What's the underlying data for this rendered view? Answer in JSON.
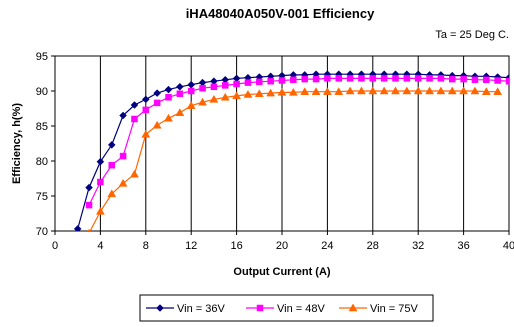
{
  "chart_data": {
    "type": "line",
    "title": "iHA48040A050V-001 Efficiency",
    "annotation": "Ta = 25 Deg C.",
    "xlabel": "Output Current (A)",
    "ylabel": "Efficiency, h(%)",
    "xlim": [
      0,
      40
    ],
    "ylim": [
      70,
      95
    ],
    "xticks": [
      0,
      4,
      8,
      12,
      16,
      20,
      24,
      28,
      32,
      36,
      40
    ],
    "yticks": [
      70,
      75,
      80,
      85,
      90,
      95
    ],
    "grid": "vertical",
    "legend": "bottom",
    "series": [
      {
        "name": "Vin = 36V",
        "color": "#000080",
        "marker": "diamond",
        "x": [
          2,
          3,
          4,
          5,
          6,
          7,
          8,
          9,
          10,
          11,
          12,
          13,
          14,
          15,
          16,
          17,
          18,
          19,
          20,
          21,
          22,
          23,
          24,
          25,
          26,
          27,
          28,
          29,
          30,
          31,
          32,
          33,
          34,
          35,
          36,
          37,
          38,
          39,
          40
        ],
        "values": [
          70.3,
          76.2,
          79.9,
          82.3,
          86.5,
          88.0,
          88.8,
          89.7,
          90.2,
          90.6,
          90.9,
          91.2,
          91.4,
          91.6,
          91.8,
          91.9,
          92.0,
          92.1,
          92.2,
          92.3,
          92.3,
          92.4,
          92.4,
          92.4,
          92.4,
          92.4,
          92.4,
          92.4,
          92.4,
          92.4,
          92.4,
          92.3,
          92.3,
          92.2,
          92.2,
          92.1,
          92.1,
          92.0,
          91.9
        ]
      },
      {
        "name": "Vin = 48V",
        "color": "#ff00ff",
        "marker": "square",
        "x": [
          3,
          4,
          5,
          6,
          7,
          8,
          9,
          10,
          11,
          12,
          13,
          14,
          15,
          16,
          17,
          18,
          19,
          20,
          21,
          22,
          23,
          24,
          25,
          26,
          27,
          28,
          29,
          30,
          31,
          32,
          33,
          34,
          35,
          36,
          37,
          38,
          39,
          40
        ],
        "values": [
          73.7,
          77.0,
          79.4,
          80.7,
          86.0,
          87.3,
          88.3,
          89.1,
          89.6,
          90.0,
          90.4,
          90.6,
          90.8,
          91.0,
          91.2,
          91.3,
          91.4,
          91.5,
          91.6,
          91.7,
          91.7,
          91.8,
          91.8,
          91.8,
          91.8,
          91.8,
          91.8,
          91.8,
          91.8,
          91.8,
          91.8,
          91.8,
          91.7,
          91.7,
          91.6,
          91.6,
          91.5,
          91.4
        ]
      },
      {
        "name": "Vin = 75V",
        "color": "#ff6600",
        "marker": "triangle",
        "x": [
          3,
          4,
          5,
          6,
          7,
          8,
          9,
          10,
          11,
          12,
          13,
          14,
          15,
          16,
          17,
          18,
          19,
          20,
          21,
          22,
          23,
          24,
          25,
          26,
          27,
          28,
          29,
          30,
          31,
          32,
          33,
          34,
          35,
          36,
          37,
          38,
          39
        ],
        "values": [
          69.7,
          72.8,
          75.3,
          76.8,
          78.1,
          83.8,
          85.1,
          86.1,
          86.9,
          87.9,
          88.4,
          88.8,
          89.1,
          89.3,
          89.5,
          89.6,
          89.7,
          89.8,
          89.8,
          89.9,
          89.9,
          89.9,
          89.9,
          90.0,
          90.0,
          90.0,
          90.0,
          90.0,
          90.0,
          90.0,
          90.0,
          90.0,
          90.0,
          90.0,
          90.0,
          89.9,
          89.9
        ]
      }
    ]
  }
}
